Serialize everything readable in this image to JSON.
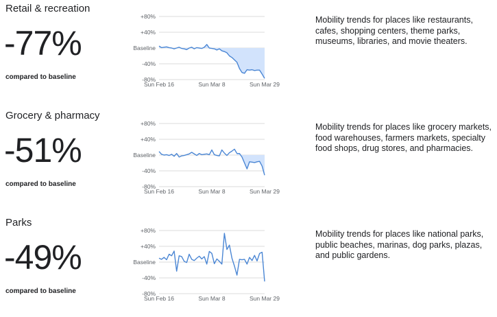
{
  "sections": [
    {
      "title": "Retail & recreation",
      "change": "-77%",
      "compared": "compared to baseline",
      "description": "Mobility trends for places like restaurants, cafes, shopping centers, theme parks, museums, libraries, and movie theaters."
    },
    {
      "title": "Grocery & pharmacy",
      "change": "-51%",
      "compared": "compared to baseline",
      "description": "Mobility trends for places like grocery markets, food warehouses, farmers markets, specialty food shops, drug stores, and pharmacies."
    },
    {
      "title": "Parks",
      "change": "-49%",
      "compared": "compared to baseline",
      "description": "Mobility trends for places like national parks, public beaches, marinas, dog parks, plazas, and public gardens."
    }
  ],
  "colors": {
    "line": "#4a86d4",
    "fill": "#d2e3fc",
    "grid": "#cfcfcf",
    "tick": "#5f6368"
  },
  "chart_data": [
    {
      "type": "area",
      "x_ticks": [
        "Sun Feb 16",
        "Sun Mar 8",
        "Sun Mar 29"
      ],
      "y_ticks": [
        "+80%",
        "+40%",
        "Baseline",
        "-40%",
        "-80%"
      ],
      "ylim": [
        -80,
        80
      ],
      "x": [
        "Feb 16",
        "Feb 17",
        "Feb 18",
        "Feb 19",
        "Feb 20",
        "Feb 21",
        "Feb 22",
        "Feb 23",
        "Feb 24",
        "Feb 25",
        "Feb 26",
        "Feb 27",
        "Feb 28",
        "Feb 29",
        "Mar 1",
        "Mar 2",
        "Mar 3",
        "Mar 4",
        "Mar 5",
        "Mar 6",
        "Mar 7",
        "Mar 8",
        "Mar 9",
        "Mar 10",
        "Mar 11",
        "Mar 12",
        "Mar 13",
        "Mar 14",
        "Mar 15",
        "Mar 16",
        "Mar 17",
        "Mar 18",
        "Mar 19",
        "Mar 20",
        "Mar 21",
        "Mar 22",
        "Mar 23",
        "Mar 24",
        "Mar 25",
        "Mar 26",
        "Mar 27",
        "Mar 28",
        "Mar 29"
      ],
      "values": [
        5,
        1,
        2,
        3,
        1,
        0,
        -2,
        0,
        2,
        -1,
        -2,
        -4,
        0,
        2,
        -2,
        1,
        0,
        -1,
        2,
        9,
        0,
        -1,
        -2,
        -5,
        -2,
        -7,
        -9,
        -12,
        -20,
        -24,
        -30,
        -36,
        -52,
        -62,
        -64,
        -55,
        -56,
        -55,
        -57,
        -56,
        -56,
        -66,
        -77
      ]
    },
    {
      "type": "area",
      "x_ticks": [
        "Sun Feb 16",
        "Sun Mar 8",
        "Sun Mar 29"
      ],
      "y_ticks": [
        "+80%",
        "+40%",
        "Baseline",
        "-40%",
        "-80%"
      ],
      "ylim": [
        -80,
        80
      ],
      "x": [
        "Feb 16",
        "Feb 17",
        "Feb 18",
        "Feb 19",
        "Feb 20",
        "Feb 21",
        "Feb 22",
        "Feb 23",
        "Feb 24",
        "Feb 25",
        "Feb 26",
        "Feb 27",
        "Feb 28",
        "Feb 29",
        "Mar 1",
        "Mar 2",
        "Mar 3",
        "Mar 4",
        "Mar 5",
        "Mar 6",
        "Mar 7",
        "Mar 8",
        "Mar 9",
        "Mar 10",
        "Mar 11",
        "Mar 12",
        "Mar 13",
        "Mar 14",
        "Mar 15",
        "Mar 16",
        "Mar 17",
        "Mar 18",
        "Mar 19",
        "Mar 20",
        "Mar 21",
        "Mar 22",
        "Mar 23",
        "Mar 24",
        "Mar 25",
        "Mar 26",
        "Mar 27",
        "Mar 28",
        "Mar 29"
      ],
      "values": [
        9,
        2,
        0,
        1,
        -1,
        2,
        -3,
        4,
        -5,
        -2,
        -1,
        1,
        3,
        7,
        3,
        -1,
        4,
        1,
        2,
        3,
        1,
        13,
        1,
        -1,
        -2,
        13,
        5,
        -1,
        6,
        10,
        15,
        4,
        4,
        -5,
        -20,
        -35,
        -17,
        -18,
        -19,
        -17,
        -16,
        -28,
        -51
      ]
    },
    {
      "type": "area",
      "x_ticks": [
        "Sun Feb 16",
        "Sun Mar 8",
        "Sun Mar 29"
      ],
      "y_ticks": [
        "+80%",
        "+40%",
        "Baseline",
        "-40%",
        "-80%"
      ],
      "ylim": [
        -80,
        80
      ],
      "x": [
        "Feb 16",
        "Feb 17",
        "Feb 18",
        "Feb 19",
        "Feb 20",
        "Feb 21",
        "Feb 22",
        "Feb 23",
        "Feb 24",
        "Feb 25",
        "Feb 26",
        "Feb 27",
        "Feb 28",
        "Feb 29",
        "Mar 1",
        "Mar 2",
        "Mar 3",
        "Mar 4",
        "Mar 5",
        "Mar 6",
        "Mar 7",
        "Mar 8",
        "Mar 9",
        "Mar 10",
        "Mar 11",
        "Mar 12",
        "Mar 13",
        "Mar 14",
        "Mar 15",
        "Mar 16",
        "Mar 17",
        "Mar 18",
        "Mar 19",
        "Mar 20",
        "Mar 21",
        "Mar 22",
        "Mar 23",
        "Mar 24",
        "Mar 25",
        "Mar 26",
        "Mar 27",
        "Mar 28",
        "Mar 29"
      ],
      "values": [
        10,
        7,
        12,
        6,
        20,
        16,
        28,
        -23,
        16,
        14,
        2,
        -1,
        20,
        7,
        4,
        10,
        15,
        8,
        14,
        -5,
        27,
        22,
        -4,
        8,
        2,
        -5,
        73,
        32,
        43,
        10,
        -10,
        -33,
        7,
        6,
        7,
        -5,
        12,
        4,
        17,
        3,
        22,
        25,
        -49
      ]
    }
  ]
}
